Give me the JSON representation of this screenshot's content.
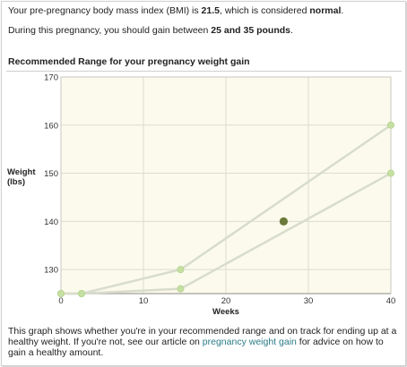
{
  "summary": {
    "bmi_prefix": "Your pre-pregnancy body mass index (BMI) is ",
    "bmi_value": "21.5",
    "bmi_middle": ", which is considered ",
    "bmi_category": "normal",
    "bmi_suffix": ".",
    "gain_prefix": "During this pregnancy, you should gain between ",
    "gain_range": "25 and 35 pounds",
    "gain_suffix": "."
  },
  "chart_title": "Recommended Range for your pregnancy weight gain",
  "caption": {
    "part1": "This graph shows whether you're in your recommended range and on track for ending up at a healthy weight. If you're not, see our article on ",
    "link_text": "pregnancy weight gain",
    "part2": " for advice on how to gain a healthy amount."
  },
  "colors": {
    "plot_background": "#fbfaec",
    "grid": "#dcdcd0",
    "range_line": "#d8dccc",
    "range_point": "#c5e0a2",
    "current_point": "#6b7a3a",
    "link": "#2a7a86"
  },
  "chart_data": {
    "type": "line",
    "title": "Recommended Range for your pregnancy weight gain",
    "xlabel": "Weeks",
    "ylabel": "Weight (lbs)",
    "ylabel_lines": [
      "Weight",
      "(lbs)"
    ],
    "xlim": [
      0,
      40
    ],
    "ylim": [
      125,
      170
    ],
    "xticks": [
      0,
      10,
      20,
      30,
      40
    ],
    "yticks": [
      130,
      140,
      150,
      160,
      170
    ],
    "grid": true,
    "series": [
      {
        "x": [
          0,
          2.5,
          14.5,
          40
        ],
        "y": [
          125,
          125,
          130,
          160
        ]
      },
      {
        "x": [
          0,
          2.5,
          14.5,
          40
        ],
        "y": [
          125,
          125,
          126,
          150
        ]
      }
    ],
    "current_point": {
      "x": 27,
      "y": 140
    }
  }
}
